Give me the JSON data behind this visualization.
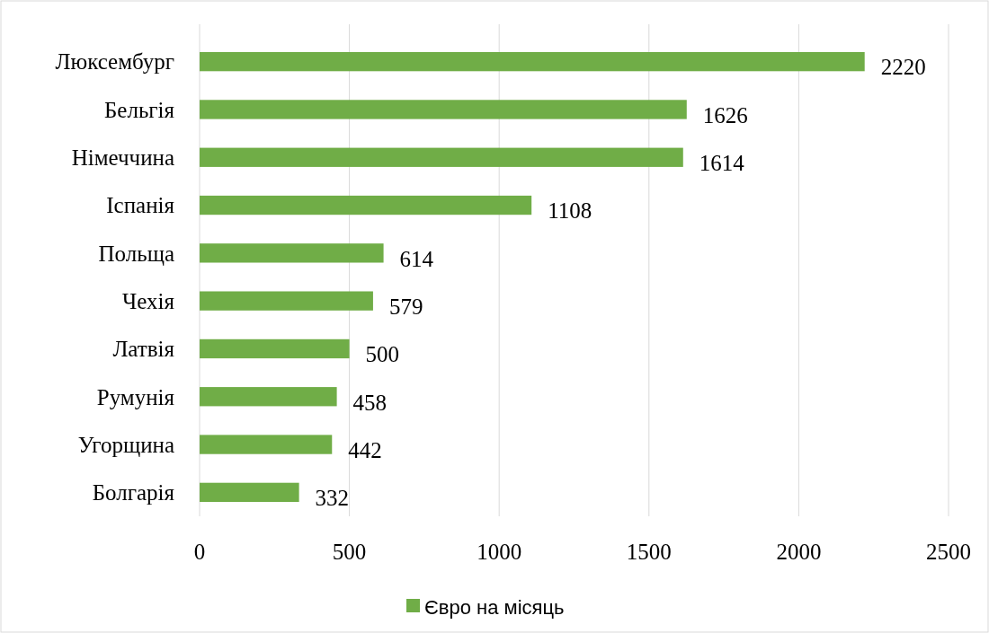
{
  "chart_data": {
    "type": "bar",
    "orientation": "horizontal",
    "categories": [
      "Люксембург",
      "Бельгія",
      "Німеччина",
      "Іспанія",
      "Польща",
      "Чехія",
      "Латвія",
      "Румунія",
      "Угорщина",
      "Болгарія"
    ],
    "series": [
      {
        "name": "Євро на місяць",
        "color": "#70ad47",
        "values": [
          2220,
          1626,
          1614,
          1108,
          614,
          579,
          500,
          458,
          442,
          332
        ]
      }
    ],
    "xlim": [
      0,
      2500
    ],
    "xticks": [
      0,
      500,
      1000,
      1500,
      2000,
      2500
    ],
    "grid": "x",
    "legend": "bottom",
    "data_labels": true
  }
}
